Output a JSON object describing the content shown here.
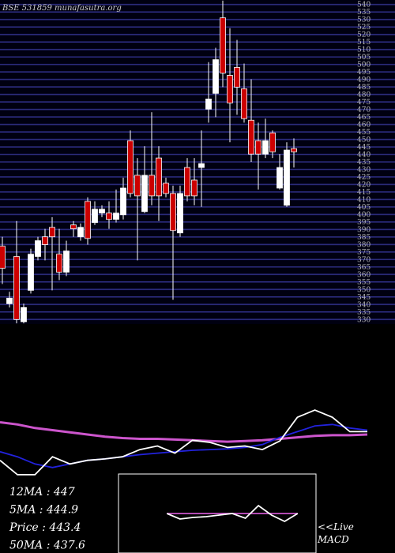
{
  "chart_data": [
    {
      "type": "candlestick",
      "title": "BSE 531859 munafasutra.org",
      "up_color": "#ffffff",
      "down_color": "#cc0000",
      "grid_color": "#2a2a7a",
      "ylim": [
        327,
        543
      ],
      "yticks": [
        330,
        335,
        340,
        345,
        350,
        355,
        360,
        365,
        370,
        375,
        380,
        385,
        390,
        395,
        400,
        405,
        410,
        415,
        420,
        425,
        430,
        435,
        440,
        445,
        450,
        455,
        460,
        465,
        470,
        475,
        480,
        485,
        490,
        495,
        500,
        505,
        510,
        515,
        520,
        525,
        530,
        535,
        540
      ],
      "open": [
        378.8,
        340.5,
        372.0,
        328.4,
        349.4,
        372.0,
        385.1,
        391.4,
        373.5,
        361.5,
        393.0,
        385.1,
        408.7,
        394.6,
        400.9,
        400.9,
        396.7,
        399.8,
        449.2,
        426.1,
        401.9,
        426.1,
        437.6,
        420.8,
        414.0,
        387.7,
        431.3,
        422.9,
        431.3,
        470.2,
        480.7,
        531.1,
        492.7,
        498.0,
        483.8,
        462.8,
        449.2,
        440.2,
        454.4,
        417.6,
        406.1,
        443.9
      ],
      "high": [
        385.1,
        348.4,
        395.6,
        340.5,
        377.2,
        385.1,
        390.4,
        398.2,
        390.4,
        382.5,
        395.6,
        394.0,
        411.4,
        408.7,
        406.1,
        408.7,
        416.6,
        424.5,
        456.0,
        437.6,
        445.5,
        468.1,
        445.5,
        424.5,
        419.2,
        419.2,
        437.6,
        437.6,
        456.0,
        501.6,
        511.1,
        542.6,
        524.2,
        516.4,
        500.6,
        490.1,
        461.2,
        463.9,
        456.0,
        440.2,
        448.1,
        450.7
      ],
      "low": [
        353.6,
        337.9,
        327.4,
        327.4,
        347.3,
        369.4,
        369.4,
        349.4,
        356.2,
        358.9,
        385.1,
        382.5,
        379.9,
        393.0,
        398.2,
        390.4,
        394.6,
        396.7,
        411.4,
        369.4,
        400.9,
        406.1,
        395.6,
        411.4,
        343.1,
        385.1,
        408.7,
        406.1,
        405.1,
        461.2,
        464.9,
        484.9,
        448.1,
        466.5,
        461.2,
        435.0,
        416.6,
        437.6,
        437.6,
        416.6,
        405.1,
        431.3
      ],
      "close": [
        364.1,
        344.2,
        330.0,
        337.9,
        373.5,
        382.5,
        379.9,
        385.1,
        361.5,
        375.6,
        390.4,
        391.4,
        384.0,
        403.5,
        403.5,
        396.7,
        400.9,
        417.6,
        414.0,
        412.4,
        426.1,
        412.4,
        412.4,
        414.0,
        389.3,
        414.0,
        412.4,
        412.4,
        433.9,
        477.0,
        503.2,
        494.3,
        474.4,
        484.9,
        463.9,
        440.2,
        440.2,
        449.2,
        441.8,
        431.3,
        442.9,
        441.8
      ]
    },
    {
      "type": "line",
      "xlim": [
        0,
        42
      ],
      "ylim": [
        380,
        490
      ],
      "labels": [
        "12MA : 447",
        "5MA : 444.9",
        "Price  : 443.4",
        "50MA : 437.6"
      ],
      "x": [
        0,
        2,
        4,
        6,
        8,
        10,
        12,
        14,
        16,
        18,
        20,
        22,
        24,
        26,
        28,
        30,
        32,
        34,
        36,
        38,
        40,
        42
      ],
      "series": [
        {
          "color": "#cc55cc",
          "values": [
            455.5,
            452.7,
            448.2,
            445.5,
            442.7,
            440.0,
            437.3,
            435.5,
            434.5,
            434.5,
            433.6,
            432.7,
            431.8,
            430.9,
            431.8,
            432.7,
            434.5,
            436.4,
            438.2,
            439.1,
            439.1,
            440.0
          ]
        },
        {
          "color": "#2222dd",
          "values": [
            418.2,
            411.8,
            402.7,
            398.2,
            402.7,
            407.3,
            409.1,
            411.8,
            414.5,
            416.4,
            418.2,
            420.0,
            420.9,
            421.8,
            423.6,
            427.3,
            436.4,
            443.6,
            450.9,
            452.7,
            448.2,
            445.5
          ]
        },
        {
          "color": "#ffffff",
          "values": [
            407.3,
            389.1,
            389.1,
            411.8,
            402.7,
            407.3,
            409.1,
            411.8,
            420.9,
            425.5,
            416.4,
            432.7,
            430.0,
            423.6,
            425.5,
            420.9,
            431.8,
            461.8,
            470.9,
            461.8,
            443.6,
            443.6
          ]
        }
      ]
    },
    {
      "type": "line",
      "label": "<<Live MACD",
      "xlim": [
        -3.7,
        11.4
      ],
      "ylim": [
        -10,
        10
      ],
      "x": [
        0,
        1,
        2,
        3,
        4,
        5,
        6,
        7,
        8,
        9,
        10
      ],
      "series": [
        {
          "color": "#cc55cc",
          "values": [
            0,
            0,
            0,
            0,
            0,
            0,
            0,
            0,
            0,
            0,
            0
          ]
        },
        {
          "color": "#ffffff",
          "values": [
            0,
            -1.4,
            -1,
            -0.8,
            -0.4,
            0,
            -1.2,
            2,
            -0.4,
            -2,
            0
          ]
        }
      ]
    }
  ]
}
